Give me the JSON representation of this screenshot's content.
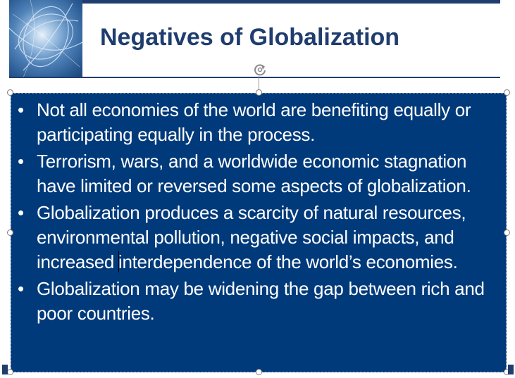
{
  "slide": {
    "title": "Negatives of Globalization",
    "bullets": [
      {
        "marker": "•",
        "text": "Not all economies of the world are benefiting equally or participating equally in the process."
      },
      {
        "marker": "•",
        "text": "Terrorism, wars, and a worldwide economic stagnation have limited or reversed some aspects of globalization."
      },
      {
        "marker": "•",
        "text_before_cursor": "Globalization produces a scarcity of natural resources, environmental pollution, negative social impacts, and increased ",
        "text_after_cursor": "interdependence of the world’s economies."
      },
      {
        "marker": "•",
        "text": "Globalization may be widening the gap between rich and poor countries."
      }
    ]
  },
  "colors": {
    "title_text": "#1f3d6e",
    "content_background": "#003a7b",
    "content_text": "#ffffff",
    "rule": "#1f3d6e"
  },
  "icons": {
    "rotate_handle": "rotate-handle-icon",
    "header_image": "globe-swirl-image"
  }
}
